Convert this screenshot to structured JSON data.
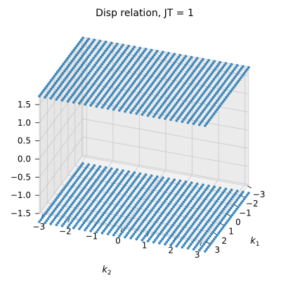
{
  "chart_data": {
    "type": "scatter",
    "projection": "3d",
    "title": "Disp relation, JT = 1",
    "xlabel": "k_2",
    "ylabel": "k_1",
    "zlabel": "",
    "xlim": [
      -3.14,
      3.14
    ],
    "ylim": [
      -3.14,
      3.14
    ],
    "zlim": [
      -1.5,
      1.75
    ],
    "x_ticks": [
      -3,
      -2,
      -1,
      0,
      1,
      2,
      3
    ],
    "y_ticks": [
      -3,
      -2,
      -1,
      0,
      1,
      2,
      3
    ],
    "z_ticks": [
      -1.5,
      -1.0,
      -0.5,
      0.0,
      0.5,
      1.0,
      1.5
    ],
    "x_tick_labels": [
      "−3",
      "−2",
      "−1",
      "0",
      "1",
      "2",
      "3"
    ],
    "y_tick_labels": [
      "−3",
      "−2",
      "−1",
      "0",
      "1",
      "2",
      "3"
    ],
    "z_tick_labels": [
      "−1.5",
      "−1.0",
      "−0.5",
      "0.0",
      "0.5",
      "1.0",
      "1.5"
    ],
    "grid": true,
    "series": [
      {
        "grid_points": 30,
        "k_range": [
          -3.14,
          3.14
        ],
        "constant_value": 1.73,
        "color": "#1f77b4"
      },
      {
        "grid_points": 30,
        "k_range": [
          -3.14,
          3.14
        ],
        "constant_value": -1.73,
        "color": "#1f77b4"
      }
    ]
  }
}
